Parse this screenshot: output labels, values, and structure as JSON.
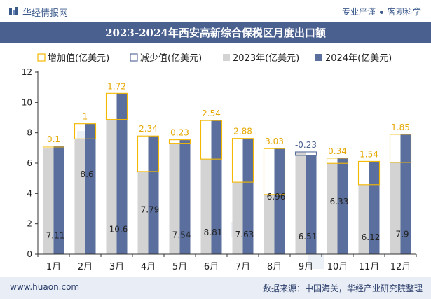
{
  "header": {
    "brand": "华经情报网",
    "tagline_left": "专业严谨",
    "tagline_right": "客观科学"
  },
  "footer": {
    "url": "www.huaon.com",
    "source": "数据来源：中国海关，华经产业研究院整理"
  },
  "colors": {
    "title_band": "#4a6190",
    "bar_2023": "#d3d3d3",
    "bar_2024": "#5a6f9e",
    "increase_outline": "#f5b800",
    "decrease_outline": "#5a6f9e",
    "increase_label": "#e6a800",
    "decrease_label": "#4a6190"
  },
  "chart_data": {
    "type": "bar",
    "title": "2023-2024年西安高新综合保税区月度出口额",
    "categories": [
      "1月",
      "2月",
      "3月",
      "4月",
      "5月",
      "6月",
      "7月",
      "8月",
      "9月",
      "10月",
      "11月",
      "12月"
    ],
    "legend": [
      "增加值(亿美元)",
      "减少值(亿美元)",
      "2023年(亿美元)",
      "2024年(亿美元)"
    ],
    "series": [
      {
        "name": "2023年(亿美元)",
        "values": [
          7.01,
          7.6,
          8.88,
          5.45,
          7.31,
          6.27,
          4.75,
          3.93,
          6.74,
          5.99,
          4.58,
          6.05
        ]
      },
      {
        "name": "2024年(亿美元)",
        "values": [
          7.11,
          8.6,
          10.6,
          7.79,
          7.54,
          8.81,
          7.63,
          6.96,
          6.51,
          6.33,
          6.12,
          7.9
        ]
      }
    ],
    "change_labels": [
      "0.1",
      "1",
      "1.72",
      "2.34",
      "0.23",
      "2.54",
      "2.88",
      "3.03",
      "-0.23",
      "0.34",
      "1.54",
      "1.85"
    ],
    "value_labels": [
      "7.11",
      "8.6",
      "10.6",
      "7.79",
      "7.54",
      "8.81",
      "7.63",
      "6.96",
      "6.51",
      "6.33",
      "6.12",
      "7.9"
    ],
    "ylim": [
      0,
      12
    ],
    "yticks": [
      "0",
      "2",
      "4",
      "6",
      "8",
      "10",
      "12"
    ],
    "legend_position": "top-left",
    "grid": false
  }
}
